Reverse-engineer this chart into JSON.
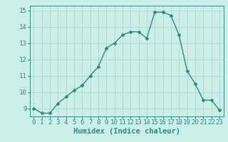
{
  "x": [
    0,
    1,
    2,
    3,
    4,
    5,
    6,
    7,
    8,
    9,
    10,
    11,
    12,
    13,
    14,
    15,
    16,
    17,
    18,
    19,
    20,
    21,
    22,
    23
  ],
  "y": [
    9.0,
    8.7,
    8.7,
    9.3,
    9.7,
    10.1,
    10.4,
    11.0,
    11.55,
    12.7,
    13.0,
    13.5,
    13.7,
    13.7,
    13.3,
    14.9,
    14.9,
    14.7,
    13.5,
    11.3,
    10.5,
    9.5,
    9.5,
    8.9
  ],
  "line_color": "#2e8b7a",
  "marker": "D",
  "marker_size": 2.0,
  "bg_color": "#cceee8",
  "grid_color": "#aad8d0",
  "xlabel": "Humidex (Indice chaleur)",
  "xlabel_fontsize": 7.5,
  "xlim": [
    -0.5,
    23.5
  ],
  "ylim": [
    8.5,
    15.3
  ],
  "yticks": [
    9,
    10,
    11,
    12,
    13,
    14,
    15
  ],
  "xtick_labels": [
    "0",
    "1",
    "2",
    "3",
    "4",
    "5",
    "6",
    "7",
    "8",
    "9",
    "10",
    "11",
    "12",
    "13",
    "14",
    "15",
    "16",
    "17",
    "18",
    "19",
    "20",
    "21",
    "22",
    "23"
  ],
  "tick_color": "#2e8b7a",
  "tick_fontsize": 6.5,
  "linewidth": 1.0
}
